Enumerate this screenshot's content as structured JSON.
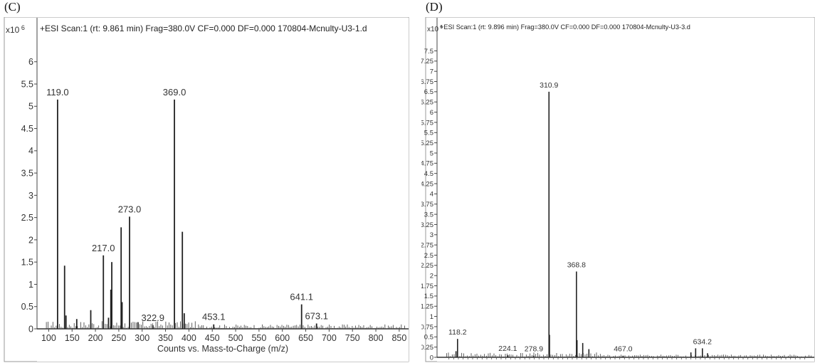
{
  "chart_data": [
    {
      "panel": "(C)",
      "type": "bar",
      "header": "+ESI Scan:1 (rt: 9.861 min) Frag=380.0V CF=0.000 DF=0.000 170804-Mcnulty-U3-1.d",
      "y_multiplier": "x10 6",
      "xlabel": "Counts vs. Mass-to-Charge (m/z)",
      "ylabel": "",
      "xlim": [
        75,
        870
      ],
      "ylim": [
        0,
        6.3
      ],
      "x_ticks": [
        100,
        150,
        200,
        250,
        300,
        350,
        400,
        450,
        500,
        550,
        600,
        650,
        700,
        750,
        800,
        850
      ],
      "y_ticks": [
        0,
        0.5,
        1,
        1.5,
        2,
        2.5,
        3,
        3.5,
        4,
        4.5,
        5,
        5.5,
        6
      ],
      "peaks": [
        {
          "x": 119.0,
          "y": 5.15,
          "label": "119.0"
        },
        {
          "x": 134.0,
          "y": 1.42
        },
        {
          "x": 137.0,
          "y": 0.3
        },
        {
          "x": 160.0,
          "y": 0.22
        },
        {
          "x": 190.0,
          "y": 0.42
        },
        {
          "x": 217.0,
          "y": 1.65,
          "label": "217.0"
        },
        {
          "x": 228.0,
          "y": 0.25
        },
        {
          "x": 235.0,
          "y": 1.5
        },
        {
          "x": 233.0,
          "y": 0.88
        },
        {
          "x": 255.0,
          "y": 2.28
        },
        {
          "x": 257.0,
          "y": 0.6
        },
        {
          "x": 273.0,
          "y": 2.52,
          "label": "273.0"
        },
        {
          "x": 291.0,
          "y": 0.15
        },
        {
          "x": 322.9,
          "y": 0.08,
          "label": "322.9"
        },
        {
          "x": 369.0,
          "y": 5.15,
          "label": "369.0"
        },
        {
          "x": 386.0,
          "y": 2.18
        },
        {
          "x": 390.0,
          "y": 0.35
        },
        {
          "x": 453.1,
          "y": 0.1,
          "label": "453.1"
        },
        {
          "x": 641.1,
          "y": 0.55,
          "label": "641.1"
        },
        {
          "x": 673.1,
          "y": 0.12,
          "label": "673.1"
        }
      ]
    },
    {
      "panel": "(D)",
      "type": "bar",
      "header": "+ESI Scan:1 (rt: 9.896 min) Frag=380.0V CF=0.000 DF=0.000 170804-Mcnulty-U3-3.d",
      "y_multiplier": "x10 6",
      "xlabel": "",
      "ylabel": "",
      "xlim": [
        75,
        870
      ],
      "ylim": [
        0,
        7.7
      ],
      "x_ticks": [],
      "y_ticks": [
        0,
        0.25,
        0.5,
        0.75,
        1,
        1.25,
        1.5,
        1.75,
        2,
        2.25,
        2.5,
        2.75,
        3,
        3.25,
        3.5,
        3.75,
        4,
        4.25,
        4.5,
        4.75,
        5,
        5.25,
        5.5,
        5.75,
        6,
        6.25,
        6.5,
        6.75,
        7,
        7.25,
        7.5
      ],
      "peaks": [
        {
          "x": 118.2,
          "y": 0.45,
          "label": "118.2"
        },
        {
          "x": 115.0,
          "y": 0.15
        },
        {
          "x": 224.1,
          "y": 0.05,
          "label": "224.1"
        },
        {
          "x": 278.9,
          "y": 0.04,
          "label": "278.9"
        },
        {
          "x": 310.9,
          "y": 6.5,
          "label": "310.9"
        },
        {
          "x": 312.0,
          "y": 0.55
        },
        {
          "x": 368.8,
          "y": 2.1,
          "label": "368.8"
        },
        {
          "x": 370.0,
          "y": 0.42
        },
        {
          "x": 382.0,
          "y": 0.35
        },
        {
          "x": 395.0,
          "y": 0.2
        },
        {
          "x": 467.0,
          "y": 0.04,
          "label": "467.0"
        },
        {
          "x": 610.0,
          "y": 0.12
        },
        {
          "x": 620.0,
          "y": 0.22
        },
        {
          "x": 634.2,
          "y": 0.22,
          "label": "634.2"
        },
        {
          "x": 645.0,
          "y": 0.1
        }
      ]
    }
  ]
}
